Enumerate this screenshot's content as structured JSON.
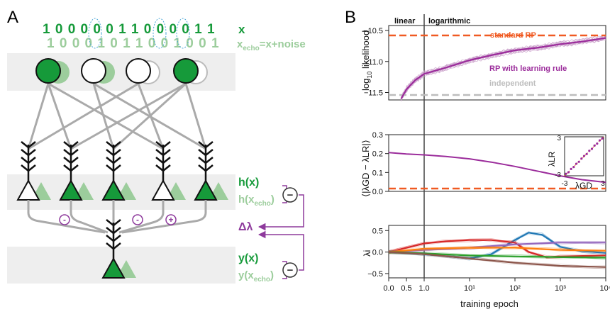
{
  "panel_a": {
    "letter": "A",
    "x_bits": "1 0 0 0 0 0 1 1 0 0 0 0 1 1",
    "x_echo_bits": "1 0 0 0 1 0 1 1 0 0 1 0 0 1",
    "x_label": "x",
    "x_echo_label_main": "x",
    "x_echo_label_sub": "echo",
    "x_echo_label_rest": "=x+noise",
    "h_label": "h(x)",
    "h_echo_main": "h(x",
    "h_echo_sub": "echo",
    "h_echo_close": ")",
    "delta_label": "Δλ",
    "y_label": "y(x)",
    "y_echo_main": "y(x",
    "y_echo_sub": "echo",
    "y_echo_close": ")",
    "minus_sign": "−",
    "weight_signs": [
      "-",
      "-",
      "+"
    ],
    "colors": {
      "dark_green": "#169a3a",
      "light_green": "#9ccd9c",
      "purple": "#8e3a9c",
      "band_gray": "#eeeeee",
      "line_gray": "#aaaaaa"
    }
  },
  "panel_b": {
    "letter": "B",
    "top": {
      "region_linear": "linear",
      "region_log": "logarithmic",
      "ylabel_main": "log",
      "ylabel_sub": "10",
      "ylabel_rest": " likelihood",
      "yticks": [
        "−10.5",
        "−11.0",
        "−11.5"
      ],
      "label_standard": "standard RP",
      "label_learning": "RP with learning rule",
      "label_independent": "independent"
    },
    "middle": {
      "ylabel": "⟨|λGD − λLR|⟩",
      "yticks": [
        "0.3",
        "0.2",
        "0.1",
        "0.0"
      ],
      "inset_ylabel": "λLR",
      "inset_xlabel": "λGD",
      "inset_ticks": [
        "-3",
        "3",
        "-3",
        "3"
      ]
    },
    "bottom": {
      "ylabel": "λi",
      "yticks": [
        "0.5",
        "0.0",
        "−0.5"
      ]
    },
    "xticks": [
      "0.0",
      "0.5",
      "1.0",
      "10¹",
      "10²",
      "10³",
      "10⁴"
    ],
    "xlabel": "training epoch",
    "colors": {
      "orange_red": "#f05a22",
      "purple": "#9b2c9b",
      "gray": "#bdbdbd"
    }
  },
  "chart_data": [
    {
      "type": "line",
      "title": "",
      "xlabel": "training epoch",
      "ylabel": "log10 likelihood",
      "x_scale": "linear 0–1, logarithmic 1–10^4",
      "ylim": [
        -11.6,
        -10.4
      ],
      "series": [
        {
          "name": "standard RP",
          "style": "dashed",
          "color": "#f05a22",
          "x": [
            0,
            10000
          ],
          "y": [
            -10.58,
            -10.58
          ]
        },
        {
          "name": "independent",
          "style": "dashed",
          "color": "#bdbdbd",
          "x": [
            0,
            10000
          ],
          "y": [
            -11.54,
            -11.54
          ]
        },
        {
          "name": "RP with learning rule",
          "color": "#9b2c9b",
          "x": [
            0.35,
            0.5,
            0.75,
            1,
            3,
            10,
            30,
            100,
            300,
            1000,
            3000,
            10000
          ],
          "y": [
            -11.6,
            -11.45,
            -11.3,
            -11.2,
            -11.1,
            -10.98,
            -10.9,
            -10.82,
            -10.78,
            -10.72,
            -10.68,
            -10.62
          ]
        }
      ]
    },
    {
      "type": "line",
      "title": "",
      "xlabel": "training epoch",
      "ylabel": "⟨|λGD − λLR|⟩",
      "x_scale": "linear 0–1, logarithmic 1–10^4",
      "ylim": [
        0,
        0.3
      ],
      "series": [
        {
          "name": "",
          "style": "dashed",
          "color": "#f05a22",
          "x": [
            0,
            10000
          ],
          "y": [
            0.015,
            0.015
          ]
        },
        {
          "name": "",
          "color": "#9b2c9b",
          "x": [
            0,
            0.5,
            1,
            3,
            10,
            30,
            100,
            300,
            1000,
            3000,
            10000
          ],
          "y": [
            0.205,
            0.198,
            0.193,
            0.185,
            0.172,
            0.155,
            0.132,
            0.108,
            0.082,
            0.062,
            0.048
          ]
        }
      ]
    },
    {
      "type": "scatter",
      "title": "",
      "xlabel": "λGD",
      "ylabel": "λLR",
      "xlim": [
        -3,
        3
      ],
      "ylim": [
        -3,
        3
      ],
      "x": [
        -2.8,
        -2.4,
        -2.0,
        -1.6,
        -1.2,
        -0.8,
        -0.4,
        0,
        0.4,
        0.8,
        1.2,
        1.6,
        2.0,
        2.4,
        2.8
      ],
      "y": [
        -2.7,
        -2.45,
        -1.95,
        -1.65,
        -1.15,
        -0.85,
        -0.35,
        0.05,
        0.35,
        0.85,
        1.15,
        1.65,
        1.95,
        2.45,
        2.75
      ]
    },
    {
      "type": "line",
      "title": "",
      "xlabel": "training epoch",
      "ylabel": "λi",
      "x_scale": "linear 0–1, logarithmic 1–10^4",
      "ylim": [
        -0.6,
        0.6
      ],
      "series": [
        {
          "name": "",
          "color": "#1f77b4",
          "x": [
            0,
            1,
            10,
            30,
            100,
            200,
            400,
            1000,
            3000,
            10000
          ],
          "y": [
            0.0,
            -0.05,
            -0.15,
            -0.05,
            0.28,
            0.45,
            0.4,
            0.12,
            0.02,
            -0.02
          ]
        },
        {
          "name": "",
          "color": "#d62728",
          "x": [
            0,
            1,
            3,
            10,
            30,
            100,
            200,
            500,
            1000,
            10000
          ],
          "y": [
            0.0,
            0.2,
            0.25,
            0.28,
            0.28,
            0.22,
            0.0,
            -0.12,
            -0.1,
            -0.08
          ]
        },
        {
          "name": "",
          "color": "#9467bd",
          "x": [
            0,
            1,
            10,
            100,
            1000,
            10000
          ],
          "y": [
            0.0,
            0.05,
            0.1,
            0.18,
            0.22,
            0.22
          ]
        },
        {
          "name": "",
          "color": "#ff7f0e",
          "x": [
            0,
            1,
            10,
            100,
            1000,
            10000
          ],
          "y": [
            0.0,
            0.08,
            0.1,
            0.1,
            0.05,
            0.03
          ]
        },
        {
          "name": "",
          "color": "#2ca02c",
          "x": [
            0,
            1,
            10,
            100,
            1000,
            10000
          ],
          "y": [
            0.0,
            -0.03,
            -0.08,
            -0.1,
            -0.12,
            -0.13
          ]
        },
        {
          "name": "",
          "color": "#8c564b",
          "x": [
            0,
            1,
            10,
            100,
            1000,
            10000
          ],
          "y": [
            0.0,
            -0.05,
            -0.15,
            -0.25,
            -0.32,
            -0.35
          ]
        }
      ]
    }
  ]
}
